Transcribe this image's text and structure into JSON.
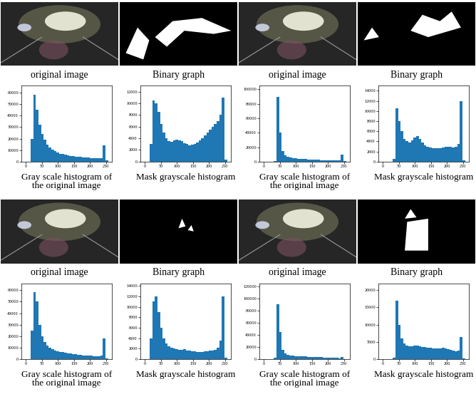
{
  "images": [
    {
      "caption": "original image"
    },
    {
      "caption": "Binary graph"
    },
    {
      "caption": "original image"
    },
    {
      "caption": "Binary graph"
    },
    {
      "caption": "original image"
    },
    {
      "caption": "Binary graph"
    },
    {
      "caption": "original image"
    },
    {
      "caption": "Binary graph"
    }
  ],
  "chart_data": [
    {
      "type": "histogram",
      "xlabel": "Gray scale histogram of\nthe original image",
      "color": "#1f77b4",
      "bins": [
        0,
        8,
        16,
        24,
        32,
        40,
        48,
        56,
        64,
        72,
        80,
        88,
        96,
        104,
        112,
        120,
        128,
        136,
        144,
        152,
        160,
        168,
        176,
        184,
        192,
        200,
        208,
        216,
        224,
        232,
        240,
        248,
        256
      ],
      "counts": [
        0,
        0,
        20000,
        58000,
        45000,
        32000,
        24000,
        19000,
        15000,
        12500,
        10500,
        9000,
        8000,
        7000,
        6500,
        6000,
        5500,
        5000,
        4800,
        4500,
        4200,
        4000,
        3800,
        3600,
        3400,
        3200,
        3000,
        2800,
        2800,
        3000,
        14000,
        1000
      ],
      "xlim": [
        -13,
        268
      ],
      "xticks": [
        0,
        50,
        100,
        150,
        200,
        250
      ],
      "ylim": [
        0,
        66000
      ],
      "yticks": [
        0,
        10000,
        20000,
        30000,
        40000,
        50000,
        60000
      ]
    },
    {
      "type": "histogram",
      "xlabel": "Mask grayscale histogram",
      "color": "#1f77b4",
      "bins": [
        0,
        8,
        16,
        24,
        32,
        40,
        48,
        56,
        64,
        72,
        80,
        88,
        96,
        104,
        112,
        120,
        128,
        136,
        144,
        152,
        160,
        168,
        176,
        184,
        192,
        200,
        208,
        216,
        224,
        232,
        240,
        248,
        256
      ],
      "counts": [
        0,
        0,
        3000,
        10500,
        10000,
        8500,
        6500,
        5000,
        4000,
        3500,
        3400,
        3600,
        3800,
        3700,
        3500,
        3200,
        3000,
        2800,
        2900,
        3000,
        3300,
        3600,
        4000,
        4500,
        5000,
        5500,
        6000,
        6500,
        7000,
        8000,
        11000,
        300
      ],
      "xlim": [
        -13,
        268
      ],
      "xticks": [
        0,
        50,
        100,
        150,
        200,
        250
      ],
      "ylim": [
        0,
        13000
      ],
      "yticks": [
        0,
        2000,
        4000,
        6000,
        8000,
        10000,
        12000
      ]
    },
    {
      "type": "histogram",
      "xlabel": "Gray scale histogram of\nthe original image",
      "color": "#1f77b4",
      "bins": [
        0,
        8,
        16,
        24,
        32,
        40,
        48,
        56,
        64,
        72,
        80,
        88,
        96,
        104,
        112,
        120,
        128,
        136,
        144,
        152,
        160,
        168,
        176,
        184,
        192,
        200,
        208,
        216,
        224,
        232,
        240,
        248,
        256
      ],
      "counts": [
        0,
        0,
        0,
        0,
        1000,
        90000,
        40000,
        15000,
        9000,
        7000,
        6000,
        5000,
        4500,
        4000,
        3800,
        3600,
        3400,
        3200,
        3000,
        2800,
        2600,
        2400,
        2200,
        2000,
        1900,
        1800,
        1700,
        1600,
        1500,
        2000,
        10000,
        500
      ],
      "xlim": [
        -13,
        268
      ],
      "xticks": [
        0,
        50,
        100,
        150,
        200,
        250
      ],
      "ylim": [
        0,
        105000
      ],
      "yticks": [
        0,
        20000,
        40000,
        60000,
        80000,
        100000
      ]
    },
    {
      "type": "histogram",
      "xlabel": "Mask grayscale histogram",
      "color": "#1f77b4",
      "bins": [
        0,
        8,
        16,
        24,
        32,
        40,
        48,
        56,
        64,
        72,
        80,
        88,
        96,
        104,
        112,
        120,
        128,
        136,
        144,
        152,
        160,
        168,
        176,
        184,
        192,
        200,
        208,
        216,
        224,
        232,
        240,
        248,
        256
      ],
      "counts": [
        0,
        0,
        0,
        0,
        500,
        10500,
        8000,
        6000,
        4500,
        4000,
        3800,
        4200,
        4800,
        5000,
        4500,
        3800,
        3200,
        3000,
        2800,
        2700,
        2600,
        2600,
        2700,
        2800,
        2900,
        3000,
        2900,
        2800,
        3000,
        3500,
        12000,
        200
      ],
      "xlim": [
        -13,
        268
      ],
      "xticks": [
        0,
        50,
        100,
        150,
        200,
        250
      ],
      "ylim": [
        0,
        15000
      ],
      "yticks": [
        0,
        2000,
        4000,
        6000,
        8000,
        10000,
        12000,
        14000
      ]
    },
    {
      "type": "histogram",
      "xlabel": "Gray scale histogram of\nthe original image",
      "color": "#1f77b4",
      "bins": [
        0,
        8,
        16,
        24,
        32,
        40,
        48,
        56,
        64,
        72,
        80,
        88,
        96,
        104,
        112,
        120,
        128,
        136,
        144,
        152,
        160,
        168,
        176,
        184,
        192,
        200,
        208,
        216,
        224,
        232,
        240,
        248,
        256
      ],
      "counts": [
        0,
        0,
        25000,
        58000,
        50000,
        30000,
        20000,
        15000,
        12000,
        10000,
        8500,
        7500,
        7000,
        6500,
        6000,
        5500,
        5000,
        4700,
        4400,
        4100,
        3800,
        3600,
        3400,
        3200,
        3000,
        2800,
        2600,
        2500,
        2500,
        3000,
        18000,
        800
      ],
      "xlim": [
        -13,
        268
      ],
      "xticks": [
        0,
        50,
        100,
        150,
        200,
        250
      ],
      "ylim": [
        0,
        66000
      ],
      "yticks": [
        0,
        10000,
        20000,
        30000,
        40000,
        50000,
        60000
      ]
    },
    {
      "type": "histogram",
      "xlabel": "Mask grayscale histogram",
      "color": "#1f77b4",
      "bins": [
        0,
        8,
        16,
        24,
        32,
        40,
        48,
        56,
        64,
        72,
        80,
        88,
        96,
        104,
        112,
        120,
        128,
        136,
        144,
        152,
        160,
        168,
        176,
        184,
        192,
        200,
        208,
        216,
        224,
        232,
        240,
        248,
        256
      ],
      "counts": [
        0,
        0,
        4000,
        11000,
        12000,
        9000,
        6000,
        4000,
        3000,
        2500,
        2200,
        2000,
        1900,
        1800,
        1800,
        1900,
        1700,
        1600,
        1500,
        1500,
        1400,
        1400,
        1400,
        1500,
        1500,
        1600,
        1700,
        1800,
        2200,
        3500,
        12000,
        300
      ],
      "xlim": [
        -13,
        268
      ],
      "xticks": [
        0,
        50,
        100,
        150,
        200,
        250
      ],
      "ylim": [
        0,
        14500
      ],
      "yticks": [
        0,
        2000,
        4000,
        6000,
        8000,
        10000,
        12000,
        14000
      ]
    },
    {
      "type": "histogram",
      "xlabel": "Gray scale histogram of\nthe original image",
      "color": "#1f77b4",
      "bins": [
        0,
        8,
        16,
        24,
        32,
        40,
        48,
        56,
        64,
        72,
        80,
        88,
        96,
        104,
        112,
        120,
        128,
        136,
        144,
        152,
        160,
        168,
        176,
        184,
        192,
        200,
        208,
        216,
        224,
        232,
        240,
        248,
        256
      ],
      "counts": [
        0,
        0,
        0,
        0,
        2000,
        90000,
        45000,
        15000,
        9000,
        7000,
        6000,
        5500,
        5000,
        4800,
        4600,
        4400,
        4200,
        4000,
        3800,
        3600,
        3400,
        3200,
        3000,
        2800,
        2600,
        2400,
        2200,
        2000,
        1800,
        1600,
        4000,
        300
      ],
      "xlim": [
        -13,
        268
      ],
      "xticks": [
        0,
        50,
        100,
        150,
        200,
        250
      ],
      "ylim": [
        0,
        125000
      ],
      "yticks": [
        0,
        20000,
        40000,
        60000,
        80000,
        100000,
        120000
      ]
    },
    {
      "type": "histogram",
      "xlabel": "Mask grayscale histogram",
      "color": "#1f77b4",
      "bins": [
        0,
        8,
        16,
        24,
        32,
        40,
        48,
        56,
        64,
        72,
        80,
        88,
        96,
        104,
        112,
        120,
        128,
        136,
        144,
        152,
        160,
        168,
        176,
        184,
        192,
        200,
        208,
        216,
        224,
        232,
        240,
        248,
        256
      ],
      "counts": [
        0,
        0,
        0,
        0,
        500,
        17000,
        10000,
        6000,
        4500,
        4000,
        3800,
        3700,
        3900,
        4000,
        3800,
        3600,
        3500,
        3400,
        3300,
        3200,
        3100,
        3000,
        3200,
        3400,
        3000,
        2800,
        2600,
        2400,
        2300,
        2500,
        6500,
        200
      ],
      "xlim": [
        -13,
        268
      ],
      "xticks": [
        0,
        50,
        100,
        150,
        200,
        250
      ],
      "ylim": [
        0,
        22000
      ],
      "yticks": [
        0,
        5000,
        10000,
        15000,
        20000
      ]
    }
  ]
}
